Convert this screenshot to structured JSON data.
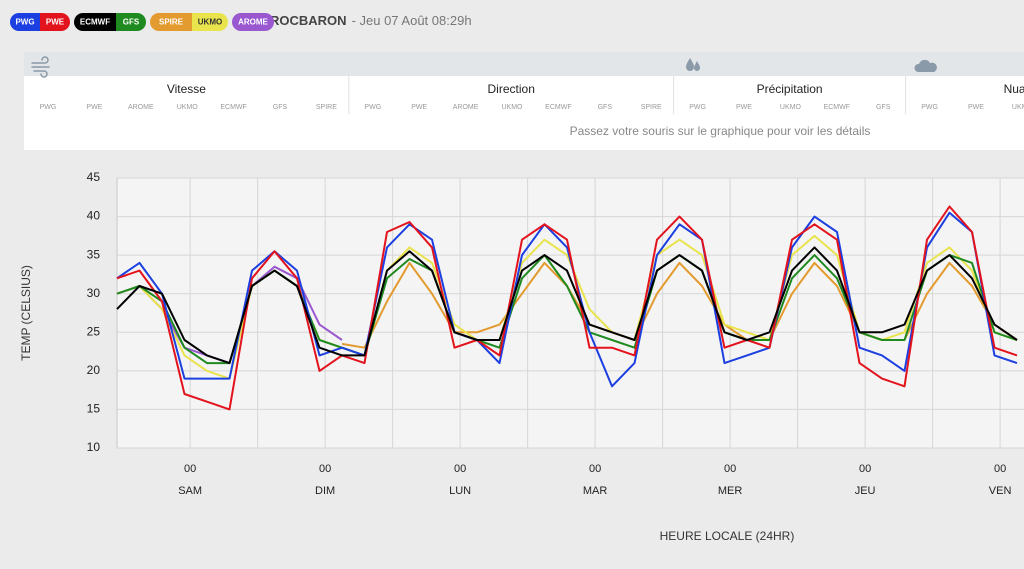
{
  "header": {
    "location": "ROCBARON",
    "datetime": "- Jeu 07 Août 08:29h"
  },
  "panel": {
    "columns": [
      {
        "title": "Vitesse",
        "models": [
          "PWG",
          "PWE",
          "AROME",
          "UKMO",
          "ECMWF",
          "GFS",
          "SPIRE"
        ]
      },
      {
        "title": "Direction",
        "models": [
          "PWG",
          "PWE",
          "AROME",
          "UKMO",
          "ECMWF",
          "GFS",
          "SPIRE"
        ]
      },
      {
        "title": "Précipitation",
        "models": [
          "PWG",
          "PWE",
          "UKMO",
          "ECMWF",
          "GFS"
        ]
      },
      {
        "title": "Nuages",
        "models": [
          "PWG",
          "PWE",
          "UKMO"
        ]
      }
    ],
    "hint": "Passez votre souris sur le graphique pour voir les détails"
  },
  "chart_data": {
    "type": "line",
    "y_label": "TEMP (CELSIUS)",
    "x_label": "HEURE LOCALE (24HR)",
    "x": [
      0,
      4,
      8,
      12,
      16,
      20,
      24,
      28,
      32,
      36,
      40,
      44,
      48,
      52,
      56,
      60,
      64,
      68,
      72,
      76,
      80,
      84,
      88,
      92,
      96,
      100,
      104,
      108,
      112,
      116,
      120,
      124,
      128,
      132,
      136,
      140,
      144,
      148,
      152,
      156,
      160
    ],
    "xlim": [
      0,
      161
    ],
    "xticks": [
      {
        "value": 13,
        "label": "00"
      },
      {
        "value": 37,
        "label": "00"
      },
      {
        "value": 61,
        "label": "00"
      },
      {
        "value": 85,
        "label": "00"
      },
      {
        "value": 109,
        "label": "00"
      },
      {
        "value": 133,
        "label": "00"
      },
      {
        "value": 157,
        "label": "00"
      }
    ],
    "xday_labels": [
      "SAM",
      "DIM",
      "LUN",
      "MAR",
      "MER",
      "JEU",
      "VEN"
    ],
    "xminor": [
      25,
      49,
      73,
      97,
      121,
      145
    ],
    "ylim": [
      10,
      45
    ],
    "yticks": [
      10,
      15,
      20,
      25,
      30,
      35,
      40,
      45
    ],
    "grid": true,
    "series": [
      {
        "name": "PWG",
        "color": "#1b3fe0",
        "values": [
          32,
          34,
          30,
          19,
          19,
          19,
          33,
          35.5,
          33,
          22,
          23,
          22,
          36,
          39,
          37,
          25,
          24,
          21,
          35,
          39,
          36,
          25,
          18,
          21,
          35,
          39,
          37,
          21,
          22,
          23,
          36,
          40,
          38,
          23,
          22,
          20,
          36,
          40.5,
          38,
          22,
          21
        ]
      },
      {
        "name": "PWE",
        "color": "#e3131d",
        "values": [
          32,
          33,
          29,
          17,
          16,
          15,
          32,
          35.5,
          32,
          20,
          22,
          21,
          38,
          39.3,
          36,
          23,
          24,
          22,
          37,
          39,
          37,
          23,
          23,
          22,
          37,
          40,
          37,
          23,
          24,
          23,
          37,
          39,
          37,
          21,
          19,
          18,
          37,
          41.3,
          38,
          23,
          22
        ]
      },
      {
        "name": "ECMWF",
        "color": "#000000",
        "values": [
          28,
          31,
          30,
          24,
          22,
          21,
          31,
          33,
          31,
          23,
          22,
          22,
          33,
          35.5,
          33,
          25,
          24,
          24,
          33,
          35,
          33,
          26,
          25,
          24,
          33,
          35,
          33,
          25,
          24,
          25,
          33,
          36,
          33,
          25,
          25,
          26,
          33,
          35,
          32,
          26,
          24
        ]
      },
      {
        "name": "GFS",
        "color": "#1f8a1f",
        "values": [
          30,
          31,
          29,
          23,
          21,
          21,
          31,
          33,
          31,
          24,
          23,
          22,
          32,
          34.5,
          33,
          25,
          24,
          23,
          32,
          35,
          31,
          25,
          24,
          23,
          33,
          35,
          33,
          25,
          24,
          24,
          32,
          35,
          32,
          25,
          24,
          24,
          33,
          35,
          34,
          25,
          24
        ]
      },
      {
        "name": "SPIRE",
        "color": "#e39a2e",
        "values": [
          null,
          null,
          null,
          null,
          null,
          null,
          null,
          null,
          null,
          null,
          23.5,
          23,
          29,
          34,
          30,
          25,
          25,
          26,
          30,
          34,
          31,
          26,
          25,
          24,
          30,
          34,
          31,
          26,
          24,
          24,
          30,
          34,
          31,
          25,
          24,
          24,
          30,
          34,
          31,
          26,
          24
        ]
      },
      {
        "name": "UKMO",
        "color": "#e9e34c",
        "values": [
          30,
          31,
          28,
          22,
          20,
          19,
          31,
          33,
          31,
          24,
          23,
          22,
          33,
          36,
          34,
          26,
          24,
          24,
          34,
          37,
          35,
          28,
          25,
          24,
          35,
          37,
          35,
          26,
          25,
          24,
          35,
          37.5,
          35,
          25,
          24,
          25,
          34,
          36,
          33,
          25,
          24
        ]
      },
      {
        "name": "AROME",
        "color": "#9a58d0",
        "values": [
          30,
          31,
          28,
          23,
          22,
          21,
          31,
          33.5,
          32,
          26,
          24,
          null,
          null,
          null,
          null,
          null,
          null,
          null,
          null,
          null,
          null,
          null,
          null,
          null,
          null,
          null,
          null,
          null,
          null,
          null,
          null,
          null,
          null,
          null,
          null,
          null,
          null,
          null,
          null,
          null,
          null
        ]
      }
    ]
  }
}
